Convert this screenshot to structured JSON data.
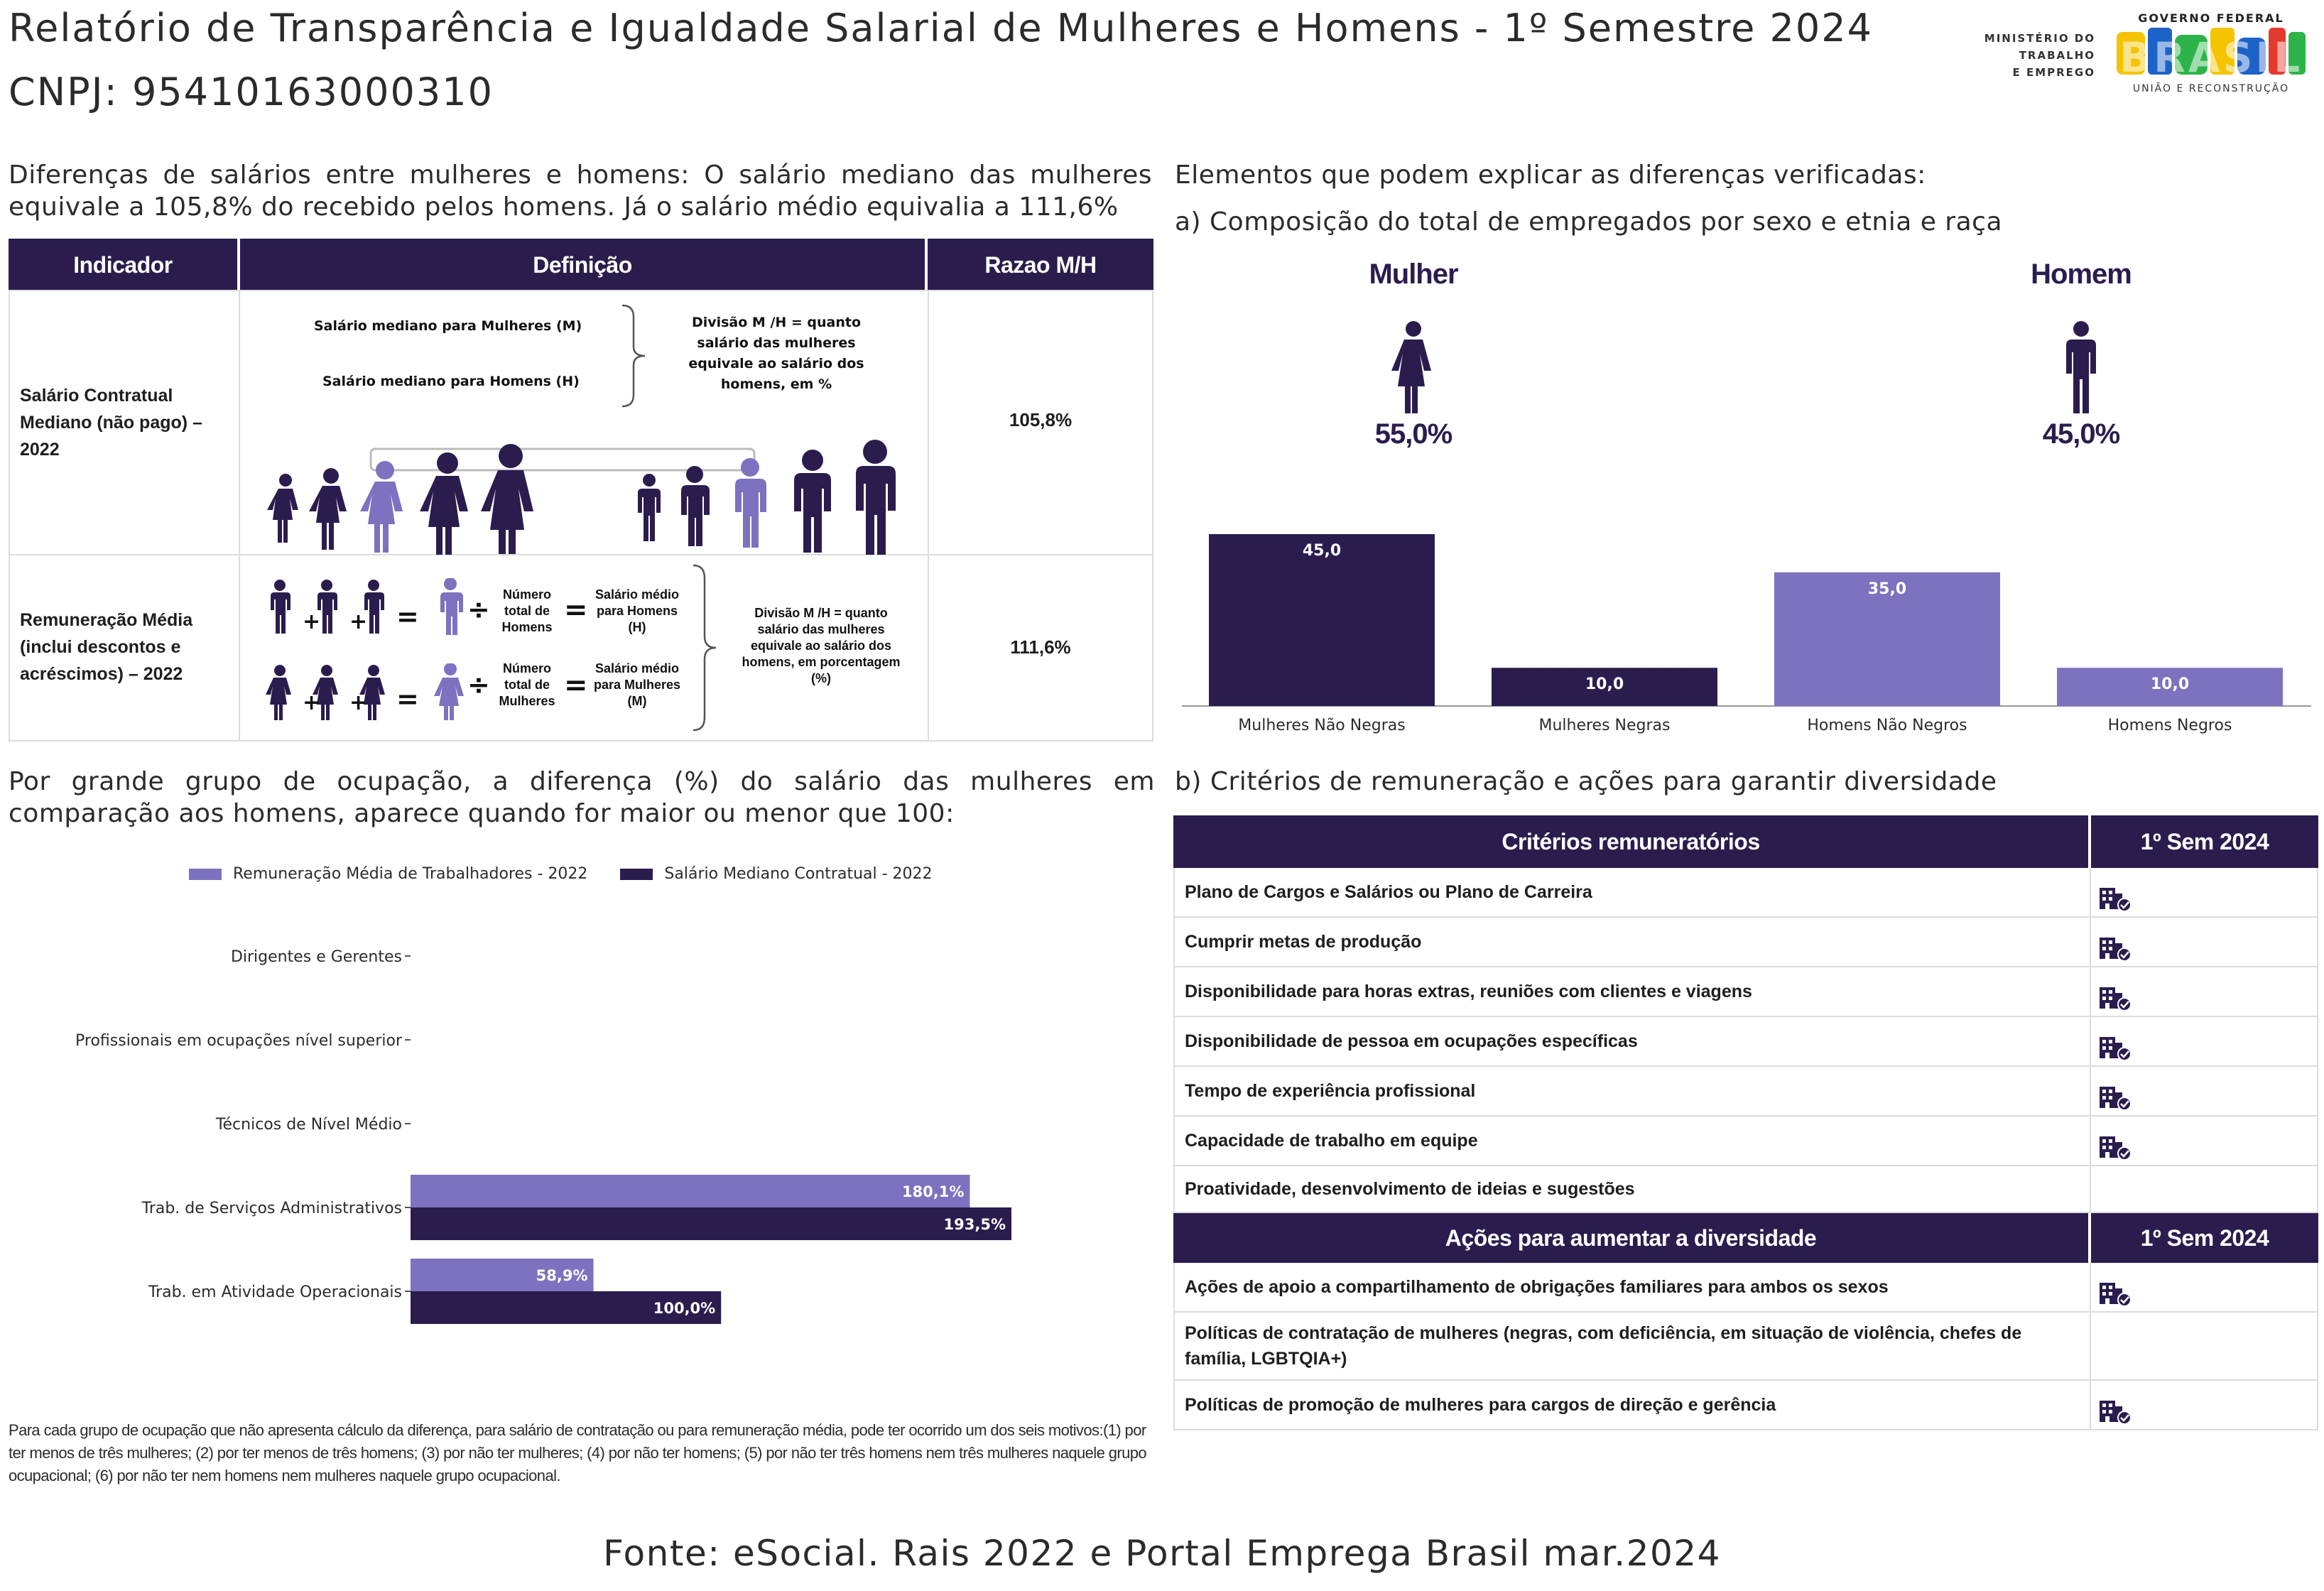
{
  "header": {
    "title": "Relatório de Transparência e Igualdade Salarial de Mulheres e Homens - 1º Semestre 2024",
    "cnpj": "CNPJ: 95410163000310",
    "ministry_line1": "MINISTÉRIO DO",
    "ministry_line2": "TRABALHO",
    "ministry_line3": "E EMPREGO",
    "gov_top": "GOVERNO FEDERAL",
    "gov_main": "BRASIL",
    "gov_bottom": "UNIÃO E RECONSTRUÇÃO"
  },
  "left_intro": "Diferenças de salários entre mulheres e homens: O salário mediano das mulheres equivale a 105,8% do recebido pelos homens. Já o salário médio equivalia a 111,6%",
  "indicator_table": {
    "headers": [
      "Indicador",
      "Definição",
      "Razao M/H"
    ],
    "row1": {
      "indicator": "Salário Contratual Mediano (não pago) – 2022",
      "def_line_women": "Salário mediano para Mulheres (M)",
      "def_line_men": "Salário mediano para Homens (H)",
      "def_division": "Divisão M /H = quanto salário das mulheres equivale ao salário dos homens, em %",
      "ratio": "105,8%"
    },
    "row2": {
      "indicator": "Remuneração Média (inclui descontos e acréscimos) – 2022",
      "num_men": "Número total de Homens",
      "sal_men": "Salário médio para Homens (H)",
      "num_women": "Número total de Mulheres",
      "sal_women": "Salário médio para Mulheres (M)",
      "def_division": "Divisão M /H = quanto salário das mulheres equivale ao salário dos homens, em porcentagem (%)",
      "ratio": "111,6%"
    },
    "symbols": {
      "plus": "+",
      "equals": "=",
      "divide": "÷"
    }
  },
  "occupation_section": {
    "heading": "Por grande grupo de ocupação, a diferença (%) do salário das mulheres em comparação aos homens, aparece quando for maior ou menor que 100:",
    "footnote": "Para cada grupo de ocupação que não apresenta cálculo da diferença, para salário de contratação ou para remuneração média, pode ter ocorrido um dos seis motivos:(1) por ter menos de três mulheres; (2) por ter menos de três homens; (3) por não ter mulheres; (4) por não ter homens; (5) por não ter três homens nem três mulheres naquele grupo ocupacional; (6) por não ter nem homens nem mulheres naquele grupo ocupacional."
  },
  "right_heading": "Elementos que podem explicar as diferenças verificadas:",
  "composition_heading": "a) Composição do total de empregados por sexo e etnia e raça",
  "gender": {
    "women_label": "Mulher",
    "women_pct": "55,0%",
    "men_label": "Homem",
    "men_pct": "45,0%"
  },
  "criteria_heading": "b) Critérios de remuneração e ações para garantir diversidade",
  "criteria_table": {
    "header_criteria": "Critérios remuneratórios",
    "header_period": "1º Sem 2024",
    "rows": [
      {
        "label": "Plano de Cargos e Salários ou Plano de Carreira",
        "checked": true
      },
      {
        "label": "Cumprir metas de produção",
        "checked": true
      },
      {
        "label": "Disponibilidade para horas extras, reuniões com clientes e viagens",
        "checked": true
      },
      {
        "label": "Disponibilidade de pessoa em ocupações específicas",
        "checked": true
      },
      {
        "label": "Tempo de experiência profissional",
        "checked": true
      },
      {
        "label": "Capacidade de trabalho em equipe",
        "checked": true
      },
      {
        "label": "Proatividade, desenvolvimento de ideias e sugestões",
        "checked": false
      }
    ],
    "header_actions": "Ações para aumentar a diversidade",
    "header_period2": "1º Sem 2024",
    "action_rows": [
      {
        "label": "Ações de apoio a compartilhamento de obrigações familiares para ambos os sexos",
        "checked": true
      },
      {
        "label": "Políticas de contratação de mulheres (negras, com deficiência, em situação de violência, chefes de família, LGBTQIA+)",
        "checked": false
      },
      {
        "label": "Políticas de promoção de mulheres para cargos de direção e gerência",
        "checked": true
      }
    ],
    "check_icon": "building-check-icon"
  },
  "footer": "Fonte: eSocial. Rais 2022 e Portal Emprega Brasil mar.2024",
  "colors": {
    "dark": "#2a1d4e",
    "light": "#7d72bf"
  },
  "chart_data": [
    {
      "type": "bar",
      "orientation": "vertical",
      "categories": [
        "Mulheres Não Negras",
        "Mulheres Negras",
        "Homens Não Negros",
        "Homens Negros"
      ],
      "values": [
        45.0,
        10.0,
        35.0,
        10.0
      ],
      "value_labels": [
        "45,0",
        "10,0",
        "35,0",
        "10,0"
      ],
      "bar_colors": [
        "#2a1d4e",
        "#2a1d4e",
        "#7d72bf",
        "#7d72bf"
      ],
      "ylim": [
        0,
        45
      ],
      "grid": false
    },
    {
      "type": "bar",
      "orientation": "horizontal",
      "categories": [
        "Dirigentes e Gerentes",
        "Profissionais em ocupações nível superior",
        "Técnicos de Nível Médio",
        "Trab. de Serviços Administrativos",
        "Trab. em Atividade Operacionais"
      ],
      "series": [
        {
          "name": "Remuneração Média de Trabalhadores - 2022",
          "color": "#7d72bf",
          "values": [
            null,
            null,
            null,
            180.1,
            58.9
          ],
          "labels": [
            "",
            "",
            "",
            "180,1%",
            "58,9%"
          ]
        },
        {
          "name": "Salário Mediano Contratual - 2022",
          "color": "#2a1d4e",
          "values": [
            null,
            null,
            null,
            193.5,
            100.0
          ],
          "labels": [
            "",
            "",
            "",
            "193,5%",
            "100,0%"
          ]
        }
      ],
      "xlim": [
        0,
        193.5
      ],
      "legend": "top",
      "grid": false
    }
  ]
}
